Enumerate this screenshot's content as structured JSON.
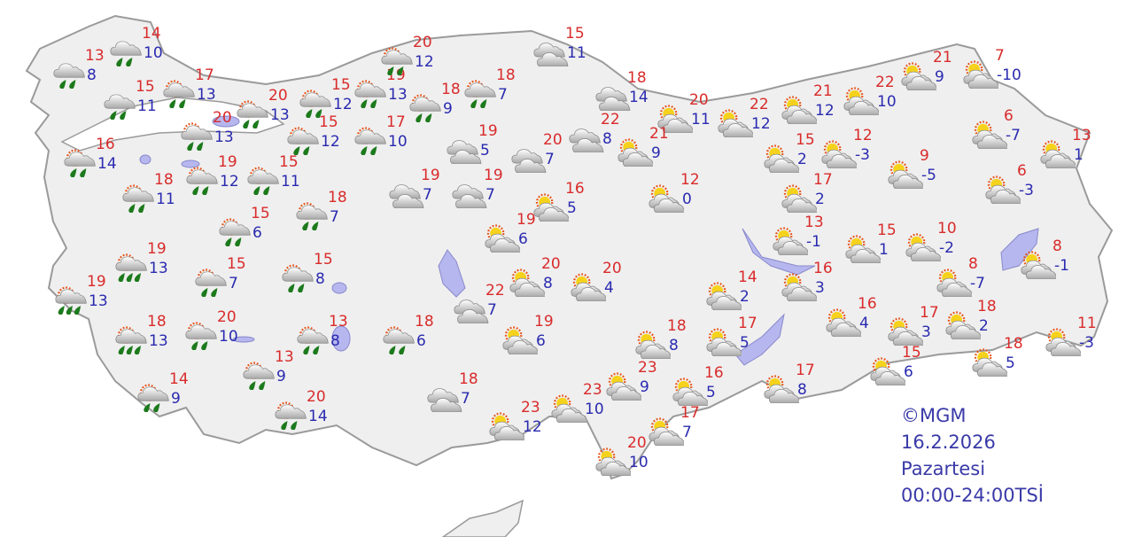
{
  "colors": {
    "land": "#efefef",
    "border": "#9a9a9a",
    "lake": "#b7b7ef",
    "max": "#d92b2b",
    "min": "#2a2ab0"
  },
  "legend": {
    "copyright": "©MGM",
    "date": "16.2.2026",
    "day": "Pazartesi",
    "period": "00:00-24:00TSİ"
  },
  "stations": [
    {
      "icon": "cloud-rain-icon",
      "max": "14",
      "min": "10"
    },
    {
      "icon": "cloud-rain-icon",
      "max": "13",
      "min": "8"
    },
    {
      "icon": "cloud-rain-icon",
      "max": "15",
      "min": "11"
    },
    {
      "icon": "partly-cloudy-rain-icon",
      "max": "17",
      "min": "13"
    },
    {
      "icon": "partly-cloudy-rain-icon",
      "max": "20",
      "min": "13"
    },
    {
      "icon": "partly-cloudy-rain-icon",
      "max": "20",
      "min": "13"
    },
    {
      "icon": "partly-cloudy-rain-icon",
      "max": "15",
      "min": "12"
    },
    {
      "icon": "partly-cloudy-rain-icon",
      "max": "19",
      "min": "13"
    },
    {
      "icon": "partly-cloudy-rain-icon",
      "max": "20",
      "min": "12"
    },
    {
      "icon": "partly-cloudy-rain-icon",
      "max": "18",
      "min": "9"
    },
    {
      "icon": "partly-cloudy-rain-icon",
      "max": "18",
      "min": "7"
    },
    {
      "icon": "partly-cloudy-rain-icon",
      "max": "15",
      "min": "12"
    },
    {
      "icon": "partly-cloudy-rain-icon",
      "max": "17",
      "min": "10"
    },
    {
      "icon": "partly-cloudy-rain-icon",
      "max": "16",
      "min": "14"
    },
    {
      "icon": "partly-cloudy-rain-icon",
      "max": "18",
      "min": "11"
    },
    {
      "icon": "partly-cloudy-rain-icon",
      "max": "19",
      "min": "12"
    },
    {
      "icon": "partly-cloudy-rain-icon",
      "max": "15",
      "min": "11"
    },
    {
      "icon": "partly-cloudy-rain-icon",
      "max": "18",
      "min": "7"
    },
    {
      "icon": "partly-cloudy-rain-icon",
      "max": "15",
      "min": "6"
    },
    {
      "icon": "partly-cloudy-heavy-rain-icon",
      "max": "19",
      "min": "13"
    },
    {
      "icon": "partly-cloudy-heavy-rain-icon",
      "max": "19",
      "min": "13"
    },
    {
      "icon": "partly-cloudy-rain-icon",
      "max": "15",
      "min": "7"
    },
    {
      "icon": "partly-cloudy-rain-icon",
      "max": "15",
      "min": "8"
    },
    {
      "icon": "partly-cloudy-heavy-rain-icon",
      "max": "18",
      "min": "13"
    },
    {
      "icon": "partly-cloudy-rain-icon",
      "max": "20",
      "min": "10"
    },
    {
      "icon": "partly-cloudy-rain-icon",
      "max": "13",
      "min": "8"
    },
    {
      "icon": "partly-cloudy-rain-icon",
      "max": "18",
      "min": "6"
    },
    {
      "icon": "partly-cloudy-rain-icon",
      "max": "13",
      "min": "9"
    },
    {
      "icon": "partly-cloudy-rain-icon",
      "max": "14",
      "min": "9"
    },
    {
      "icon": "partly-cloudy-rain-icon",
      "max": "20",
      "min": "14"
    },
    {
      "icon": "cloudy-icon",
      "max": "15",
      "min": "11"
    },
    {
      "icon": "cloudy-icon",
      "max": "18",
      "min": "14"
    },
    {
      "icon": "cloudy-icon",
      "max": "22",
      "min": "8"
    },
    {
      "icon": "cloudy-icon",
      "max": "19",
      "min": "5"
    },
    {
      "icon": "cloudy-icon",
      "max": "20",
      "min": "7"
    },
    {
      "icon": "cloudy-icon",
      "max": "19",
      "min": "7"
    },
    {
      "icon": "cloudy-icon",
      "max": "19",
      "min": "7"
    },
    {
      "icon": "cloudy-icon",
      "max": "22",
      "min": "7"
    },
    {
      "icon": "cloudy-icon",
      "max": "18",
      "min": "7"
    },
    {
      "icon": "partly-cloudy-icon",
      "max": "20",
      "min": "11"
    },
    {
      "icon": "partly-cloudy-icon",
      "max": "22",
      "min": "12"
    },
    {
      "icon": "partly-cloudy-icon",
      "max": "21",
      "min": "9"
    },
    {
      "icon": "partly-cloudy-icon",
      "max": "12",
      "min": "0"
    },
    {
      "icon": "partly-cloudy-icon",
      "max": "16",
      "min": "5"
    },
    {
      "icon": "partly-cloudy-icon",
      "max": "19",
      "min": "6"
    },
    {
      "icon": "partly-cloudy-icon",
      "max": "20",
      "min": "8"
    },
    {
      "icon": "partly-cloudy-icon",
      "max": "20",
      "min": "4"
    },
    {
      "icon": "partly-cloudy-icon",
      "max": "19",
      "min": "6"
    },
    {
      "icon": "partly-cloudy-icon",
      "max": "18",
      "min": "8"
    },
    {
      "icon": "partly-cloudy-icon",
      "max": "23",
      "min": "9"
    },
    {
      "icon": "partly-cloudy-icon",
      "max": "23",
      "min": "10"
    },
    {
      "icon": "partly-cloudy-icon",
      "max": "23",
      "min": "12"
    },
    {
      "icon": "partly-cloudy-icon",
      "max": "20",
      "min": "10"
    },
    {
      "icon": "partly-cloudy-icon",
      "max": "17",
      "min": "7"
    },
    {
      "icon": "partly-cloudy-icon",
      "max": "16",
      "min": "5"
    },
    {
      "icon": "partly-cloudy-icon",
      "max": "17",
      "min": "5"
    },
    {
      "icon": "partly-cloudy-icon",
      "max": "14",
      "min": "2"
    },
    {
      "icon": "partly-cloudy-icon",
      "max": "17",
      "min": "8"
    },
    {
      "icon": "partly-cloudy-icon",
      "max": "16",
      "min": "3"
    },
    {
      "icon": "partly-cloudy-icon",
      "max": "16",
      "min": "4"
    },
    {
      "icon": "partly-cloudy-icon",
      "max": "17",
      "min": "3"
    },
    {
      "icon": "partly-cloudy-icon",
      "max": "18",
      "min": "2"
    },
    {
      "icon": "partly-cloudy-icon",
      "max": "8",
      "min": "-7"
    },
    {
      "icon": "partly-cloudy-icon",
      "max": "15",
      "min": "6"
    },
    {
      "icon": "partly-cloudy-icon",
      "max": "18",
      "min": "5"
    },
    {
      "icon": "partly-cloudy-icon",
      "max": "11",
      "min": "-3"
    },
    {
      "icon": "partly-cloudy-icon",
      "max": "8",
      "min": "-1"
    },
    {
      "icon": "partly-cloudy-icon",
      "max": "10",
      "min": "-2"
    },
    {
      "icon": "partly-cloudy-icon",
      "max": "15",
      "min": "1"
    },
    {
      "icon": "partly-cloudy-icon",
      "max": "13",
      "min": "-1"
    },
    {
      "icon": "partly-cloudy-icon",
      "max": "17",
      "min": "2"
    },
    {
      "icon": "partly-cloudy-icon",
      "max": "15",
      "min": "2"
    },
    {
      "icon": "partly-cloudy-icon",
      "max": "12",
      "min": "-3"
    },
    {
      "icon": "partly-cloudy-icon",
      "max": "9",
      "min": "-5"
    },
    {
      "icon": "partly-cloudy-icon",
      "max": "6",
      "min": "-3"
    },
    {
      "icon": "partly-cloudy-icon",
      "max": "6",
      "min": "-7"
    },
    {
      "icon": "partly-cloudy-icon",
      "max": "13",
      "min": "1"
    },
    {
      "icon": "partly-cloudy-icon",
      "max": "7",
      "min": "-10"
    },
    {
      "icon": "partly-cloudy-icon",
      "max": "21",
      "min": "9"
    },
    {
      "icon": "partly-cloudy-icon",
      "max": "22",
      "min": "10"
    },
    {
      "icon": "partly-cloudy-icon",
      "max": "21",
      "min": "12"
    }
  ]
}
